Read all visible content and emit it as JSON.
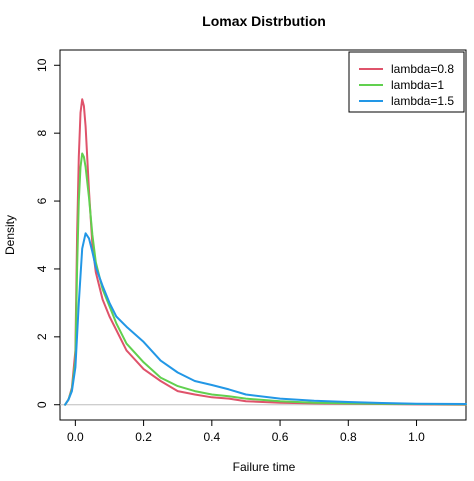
{
  "chart_data": {
    "type": "line",
    "title": "Lomax Distrbution",
    "xlabel": "Failure time",
    "ylabel": "Density",
    "xlim": [
      -0.045,
      1.145
    ],
    "ylim": [
      -0.45,
      10.45
    ],
    "x_ticks": [
      0.0,
      0.2,
      0.4,
      0.6,
      0.8,
      1.0
    ],
    "x_tick_labels": [
      "0.0",
      "0.2",
      "0.4",
      "0.6",
      "0.8",
      "1.0"
    ],
    "y_ticks": [
      0,
      2,
      4,
      6,
      8,
      10
    ],
    "y_tick_labels": [
      "0",
      "2",
      "4",
      "6",
      "8",
      "10"
    ],
    "baseline": {
      "y": 0,
      "color": "#bebebe"
    },
    "legend_position": "top-right",
    "grid": false,
    "series": [
      {
        "name": "lambda=0.8",
        "color": "#df536b",
        "x": [
          -0.03,
          -0.02,
          -0.01,
          0.0,
          0.005,
          0.01,
          0.015,
          0.02,
          0.025,
          0.03,
          0.04,
          0.05,
          0.06,
          0.08,
          0.1,
          0.12,
          0.15,
          0.2,
          0.25,
          0.3,
          0.35,
          0.4,
          0.45,
          0.5,
          0.6,
          0.7,
          0.8,
          1.0,
          1.145
        ],
        "y": [
          0,
          0.15,
          0.5,
          1.6,
          5.0,
          7.3,
          8.6,
          9.0,
          8.8,
          8.2,
          6.3,
          4.7,
          3.9,
          3.1,
          2.6,
          2.2,
          1.6,
          1.05,
          0.7,
          0.4,
          0.3,
          0.22,
          0.18,
          0.1,
          0.06,
          0.04,
          0.03,
          0.01,
          0.0
        ]
      },
      {
        "name": "lambda=1",
        "color": "#61d04f",
        "x": [
          -0.03,
          -0.02,
          -0.01,
          0.0,
          0.005,
          0.01,
          0.015,
          0.02,
          0.025,
          0.03,
          0.04,
          0.05,
          0.06,
          0.08,
          0.1,
          0.12,
          0.15,
          0.2,
          0.25,
          0.3,
          0.35,
          0.4,
          0.45,
          0.5,
          0.6,
          0.7,
          0.8,
          1.0,
          1.145
        ],
        "y": [
          0,
          0.15,
          0.45,
          1.3,
          4.0,
          6.0,
          7.0,
          7.4,
          7.3,
          7.0,
          6.1,
          5.0,
          4.2,
          3.4,
          2.9,
          2.4,
          1.8,
          1.25,
          0.8,
          0.55,
          0.4,
          0.3,
          0.25,
          0.18,
          0.1,
          0.06,
          0.04,
          0.02,
          0.01
        ]
      },
      {
        "name": "lambda=1.5",
        "color": "#2297e6",
        "x": [
          -0.03,
          -0.02,
          -0.01,
          0.0,
          0.01,
          0.02,
          0.03,
          0.04,
          0.05,
          0.06,
          0.08,
          0.1,
          0.12,
          0.15,
          0.2,
          0.25,
          0.3,
          0.35,
          0.4,
          0.45,
          0.5,
          0.6,
          0.7,
          0.8,
          0.9,
          1.0,
          1.145
        ],
        "y": [
          0,
          0.15,
          0.4,
          1.1,
          3.0,
          4.6,
          5.05,
          4.9,
          4.5,
          4.05,
          3.5,
          3.0,
          2.6,
          2.3,
          1.85,
          1.3,
          0.95,
          0.7,
          0.58,
          0.45,
          0.3,
          0.18,
          0.12,
          0.08,
          0.05,
          0.03,
          0.02
        ]
      }
    ]
  }
}
